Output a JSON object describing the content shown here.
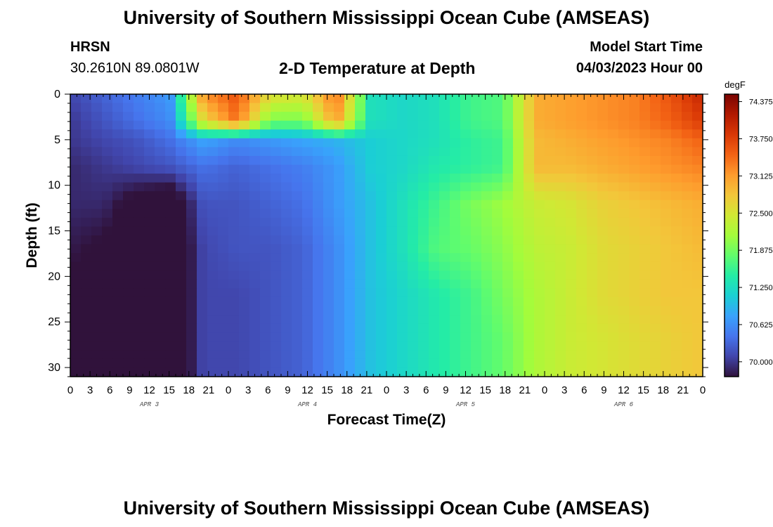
{
  "header": {
    "title": "University of Southern Mississippi Ocean Cube (AMSEAS)",
    "station": "HRSN",
    "coords": "30.2610N  89.0801W",
    "subtitle": "2-D Temperature at Depth",
    "model_start_label": "Model Start Time",
    "model_start_value": "04/03/2023 Hour 00"
  },
  "footer": {
    "title": "University of Southern Mississippi Ocean Cube (AMSEAS)"
  },
  "chart_data": {
    "type": "heatmap",
    "title": "2-D Temperature at Depth",
    "xlabel": "Forecast Time(Z)",
    "ylabel": "Depth (ft)",
    "x": [
      0,
      3,
      6,
      9,
      12,
      15,
      18,
      21,
      24,
      27,
      30,
      33,
      36,
      39,
      42,
      45,
      48,
      51,
      54,
      57,
      60,
      63,
      66,
      69,
      72,
      75,
      78,
      81,
      84,
      87,
      90,
      93,
      96
    ],
    "x_unit": "forecast hour",
    "xlim": [
      0,
      96
    ],
    "x_tick_labels": [
      "0",
      "3",
      "6",
      "9",
      "12",
      "15",
      "18",
      "21",
      "0",
      "3",
      "6",
      "9",
      "12",
      "15",
      "18",
      "21",
      "0",
      "3",
      "6",
      "9",
      "12",
      "15",
      "18",
      "21",
      "0",
      "3",
      "6",
      "9",
      "12",
      "15",
      "18",
      "21",
      "0"
    ],
    "day_labels": [
      {
        "text": "APR 3",
        "at_hour": 12
      },
      {
        "text": "APR 4",
        "at_hour": 36
      },
      {
        "text": "APR 5",
        "at_hour": 60
      },
      {
        "text": "APR 6",
        "at_hour": 84
      }
    ],
    "y": [
      0,
      5,
      10,
      15,
      20,
      25,
      30
    ],
    "y_unit": "ft",
    "ylim": [
      0,
      31
    ],
    "y_inverted": true,
    "y_tick_labels": [
      "0",
      "5",
      "10",
      "15",
      "20",
      "25",
      "30"
    ],
    "depths": [
      0,
      3,
      5,
      8,
      12,
      17,
      22,
      27,
      31
    ],
    "values": [
      [
        70.1,
        70.3,
        70.5,
        70.7,
        73.2,
        73.6,
        72.6,
        72.5,
        73.4,
        71.3,
        71.2,
        71.3,
        71.6,
        71.7,
        73.0,
        73.1,
        73.2,
        73.3,
        73.6,
        74.0
      ],
      [
        70.0,
        70.2,
        70.4,
        70.6,
        72.6,
        73.4,
        71.9,
        71.9,
        73.1,
        71.3,
        71.2,
        71.3,
        71.6,
        71.7,
        73.0,
        73.1,
        73.2,
        73.3,
        73.5,
        73.8
      ],
      [
        70.0,
        70.1,
        70.2,
        70.4,
        70.8,
        70.6,
        70.7,
        70.8,
        70.9,
        71.1,
        71.2,
        71.3,
        71.5,
        71.6,
        72.9,
        73.0,
        73.1,
        73.2,
        73.3,
        73.5
      ],
      [
        69.9,
        70.0,
        70.1,
        70.2,
        70.4,
        70.3,
        70.4,
        70.5,
        70.7,
        71.1,
        71.2,
        71.4,
        71.5,
        71.6,
        72.9,
        72.9,
        73.0,
        73.1,
        73.2,
        73.3
      ],
      [
        69.9,
        69.9,
        69.6,
        69.4,
        70.2,
        70.2,
        70.3,
        70.4,
        70.7,
        71.0,
        71.3,
        71.6,
        71.9,
        72.1,
        72.4,
        72.5,
        72.7,
        72.8,
        72.9,
        73.0
      ],
      [
        69.8,
        69.7,
        69.5,
        69.3,
        70.1,
        70.2,
        70.2,
        70.3,
        70.6,
        71.0,
        71.3,
        71.7,
        71.8,
        72.0,
        72.3,
        72.4,
        72.6,
        72.7,
        72.8,
        72.9
      ],
      [
        69.7,
        69.6,
        69.4,
        69.3,
        70.1,
        70.1,
        70.2,
        70.3,
        70.6,
        71.0,
        71.2,
        71.4,
        71.6,
        71.9,
        72.2,
        72.4,
        72.6,
        72.7,
        72.8,
        72.8
      ],
      [
        69.7,
        69.6,
        69.4,
        69.3,
        70.1,
        70.1,
        70.2,
        70.3,
        70.6,
        71.0,
        71.2,
        71.4,
        71.6,
        71.8,
        72.2,
        72.4,
        72.5,
        72.6,
        72.7,
        72.8
      ],
      [
        69.7,
        69.6,
        69.4,
        69.3,
        70.1,
        70.1,
        70.2,
        70.3,
        70.6,
        71.0,
        71.2,
        71.4,
        71.6,
        71.8,
        72.2,
        72.4,
        72.5,
        72.6,
        72.7,
        72.8
      ]
    ],
    "colorbar": {
      "unit": "degF",
      "min": 69.75,
      "max": 74.5,
      "ticks": [
        70.0,
        70.625,
        71.25,
        71.875,
        72.5,
        73.125,
        73.75,
        74.375
      ],
      "tick_labels": [
        "70.000",
        "70.625",
        "71.250",
        "71.875",
        "72.500",
        "73.125",
        "73.750",
        "74.375"
      ],
      "colors": [
        "#30123b",
        "#4145ab",
        "#4675ed",
        "#39a2fc",
        "#1bcfd4",
        "#24eca6",
        "#61fc6c",
        "#a4fc3b",
        "#d1e834",
        "#f3c63a",
        "#fe9b2d",
        "#f36315",
        "#d93806",
        "#b11901",
        "#7a0402"
      ]
    },
    "grid": false
  }
}
